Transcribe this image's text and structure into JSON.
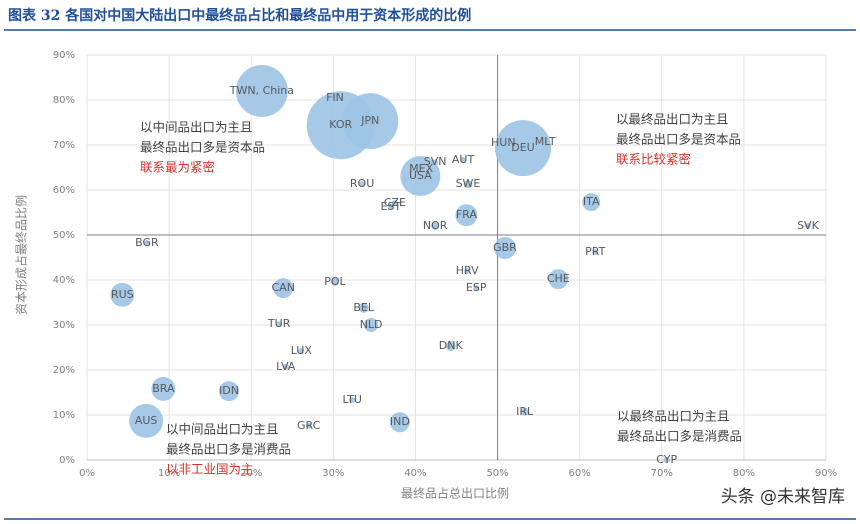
{
  "chart_data": {
    "type": "bubble",
    "title": "图表 32   各国对中国大陆出口中最终品占比和最终品中用于资本形成的比例",
    "x_label": "最终品占总出口比例",
    "y_label": "资本形成占最终品比例",
    "watermark": "头条 @未来智库",
    "color": "#9dc3e6",
    "grid": true,
    "xlim": [
      0,
      90
    ],
    "ylim": [
      0,
      90
    ],
    "xticks": [
      {
        "value": 0,
        "label": "0%"
      },
      {
        "value": 10,
        "label": "10%"
      },
      {
        "value": 20,
        "label": "20%"
      },
      {
        "value": 30,
        "label": "30%"
      },
      {
        "value": 40,
        "label": "40%"
      },
      {
        "value": 50,
        "label": "50%"
      },
      {
        "value": 60,
        "label": "60%"
      },
      {
        "value": 70,
        "label": "70%"
      },
      {
        "value": 80,
        "label": "80%"
      },
      {
        "value": 90,
        "label": "90%"
      }
    ],
    "yticks": [
      {
        "value": 0,
        "label": "0%"
      },
      {
        "value": 10,
        "label": "10%"
      },
      {
        "value": 20,
        "label": "20%"
      },
      {
        "value": 30,
        "label": "30%"
      },
      {
        "value": 40,
        "label": "40%"
      },
      {
        "value": 50,
        "label": "50%"
      },
      {
        "value": 60,
        "label": "60%"
      },
      {
        "value": 70,
        "label": "70%"
      },
      {
        "value": 80,
        "label": "80%"
      },
      {
        "value": 90,
        "label": "90%"
      }
    ],
    "x_ref": 50,
    "y_ref": 50,
    "labels": [
      "TWN, China",
      "KOR",
      "JPN",
      "FIN",
      "USA",
      "MEX",
      "SVN",
      "AUT",
      "HUN",
      "DEU",
      "MLT",
      "ROU",
      "SWE",
      "CZE",
      "EST",
      "FRA",
      "NOR",
      "ITA",
      "SVK",
      "BGR",
      "GBR",
      "PRT",
      "HRV",
      "CHE",
      "ESP",
      "RUS",
      "CAN",
      "POL",
      "BEL",
      "NLD",
      "TUR",
      "LUX",
      "DNK",
      "LVA",
      "BRA",
      "IDN",
      "LTU",
      "IRL",
      "IND",
      "AUS",
      "GRC",
      "CYP"
    ],
    "x": [
      21.3,
      30.9,
      34.5,
      30.2,
      40.6,
      40.7,
      42.4,
      45.8,
      50.7,
      53.1,
      55.8,
      33.5,
      46.4,
      37.5,
      37.0,
      46.2,
      42.4,
      61.4,
      87.8,
      7.3,
      50.9,
      61.9,
      46.3,
      57.4,
      47.4,
      4.3,
      23.9,
      30.2,
      33.7,
      34.6,
      23.4,
      26.1,
      44.3,
      24.2,
      9.3,
      17.3,
      32.3,
      53.3,
      38.1,
      7.2,
      27.0,
      70.6
    ],
    "values": [
      82,
      74.4,
      75.3,
      80.4,
      63.1,
      64.7,
      66.2,
      66.7,
      70.4,
      69.3,
      70.7,
      61.3,
      61.3,
      57.1,
      56.2,
      54.4,
      52,
      57.3,
      52,
      48.2,
      47.1,
      46.2,
      42,
      40.2,
      38.2,
      36.7,
      38.2,
      39.6,
      33.8,
      30,
      30.2,
      24.2,
      25.3,
      20.7,
      15.8,
      15.3,
      13.3,
      10.7,
      8.4,
      8.7,
      7.6,
      0
    ],
    "sizes": [
      26,
      34,
      28,
      3,
      20,
      3,
      3,
      3,
      3,
      28,
      3,
      3,
      4,
      3,
      3,
      11,
      4,
      9,
      3,
      3,
      11,
      3,
      3,
      10,
      3,
      12,
      10,
      4,
      5,
      7,
      3,
      3,
      5,
      3,
      12,
      10,
      3,
      4,
      10,
      17,
      3,
      3
    ],
    "annotations": [
      {
        "lines": [
          "以中间品出口为主且",
          "最终品出口多是资本品"
        ],
        "note": "联系最为紧密"
      },
      {
        "lines": [
          "以最终品出口为主且",
          "最终品出口多是资本品"
        ],
        "note": "联系比较紧密"
      },
      {
        "lines": [
          "以中间品出口为主且",
          "最终品出口多是消费品"
        ],
        "note": "以非工业国为主"
      },
      {
        "lines": [
          "以最终品出口为主且",
          "最终品出口多是消费品"
        ]
      }
    ]
  }
}
